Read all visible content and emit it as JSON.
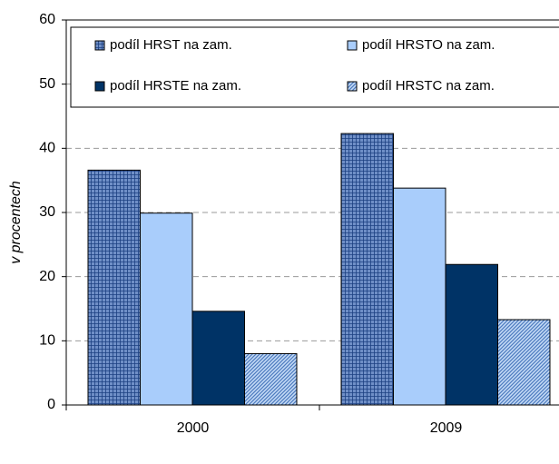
{
  "chart_data": {
    "type": "bar",
    "y_label": "v procentech",
    "categories": [
      "2000",
      "2009"
    ],
    "series": [
      {
        "name": "podíl HRST na zam.",
        "color": "#2f5597",
        "hatch": "grid",
        "values": [
          36.6,
          42.3
        ]
      },
      {
        "name": "podíl HRSTO na zam.",
        "color": "#a9cdfb",
        "values": [
          29.9,
          33.8
        ]
      },
      {
        "name": "podíl HRSTE na zam.",
        "color": "#003366",
        "values": [
          14.6,
          21.9
        ]
      },
      {
        "name": "podíl HRSTC na zam.",
        "color": "#7fa6d9",
        "hatch": "diagonal",
        "values": [
          8.0,
          13.3
        ]
      }
    ],
    "ylim": [
      0,
      60
    ],
    "yticks": [
      0,
      10,
      20,
      30,
      40,
      50,
      60
    ],
    "grid": true
  }
}
